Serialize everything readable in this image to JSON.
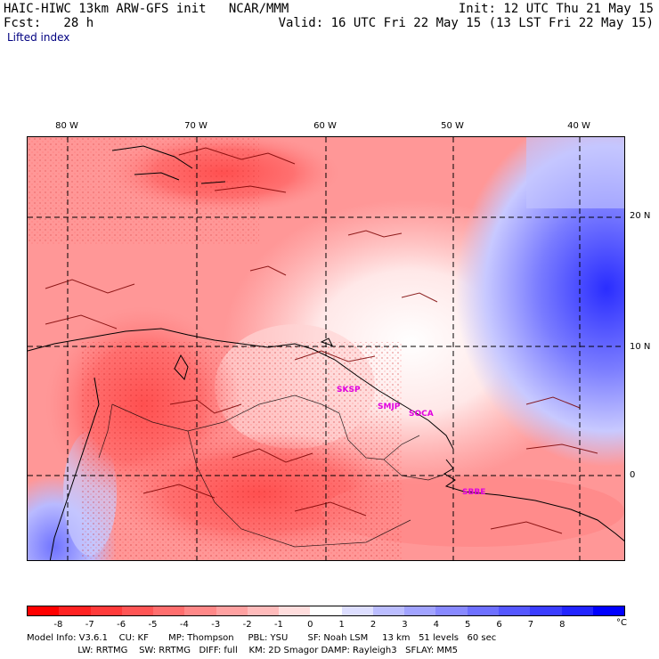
{
  "header": {
    "line1_left": "HAIC-HIWC 13km ARW-GFS init   NCAR/MMM",
    "line1_right": "Init: 12 UTC Thu 21 May 15",
    "line2_left": "Fcst:   28 h",
    "line2_right": "Valid: 16 UTC Fri 22 May 15 (13 LST Fri 22 May 15)",
    "field": "Lifted index"
  },
  "map": {
    "lon_labels": [
      "80 W",
      "70 W",
      "60 W",
      "50 W",
      "40 W"
    ],
    "lat_labels": [
      "20 N",
      "10 N",
      "0"
    ],
    "stations": [
      "SKSP",
      "SMJP",
      "SOCA",
      "SBBE"
    ]
  },
  "colorbar": {
    "ticks": [
      "-8",
      "-7",
      "-6",
      "-5",
      "-4",
      "-3",
      "-2",
      "-1",
      "0",
      "1",
      "2",
      "3",
      "4",
      "5",
      "6",
      "7",
      "8"
    ],
    "unit": "°C",
    "colors": [
      "#ff0000",
      "#ff2222",
      "#ff3b3b",
      "#ff5555",
      "#ff6e6e",
      "#ff8888",
      "#ffa1a1",
      "#ffbbbb",
      "#ffdddd",
      "#ffffff",
      "#dddeff",
      "#bbbdff",
      "#a1a3ff",
      "#8889ff",
      "#6e70ff",
      "#5557ff",
      "#3b3dff",
      "#2224ff",
      "#0000ff"
    ]
  },
  "footer": {
    "line1": "Model Info: V3.6.1    CU: KF       MP: Thompson     PBL: YSU       SF: Noah LSM     13 km   51 levels   60 sec",
    "line2": "                  LW: RRTMG    SW: RRTMG   DIFF: full    KM: 2D Smagor DAMP: Rayleigh3   SFLAY: MM5"
  }
}
